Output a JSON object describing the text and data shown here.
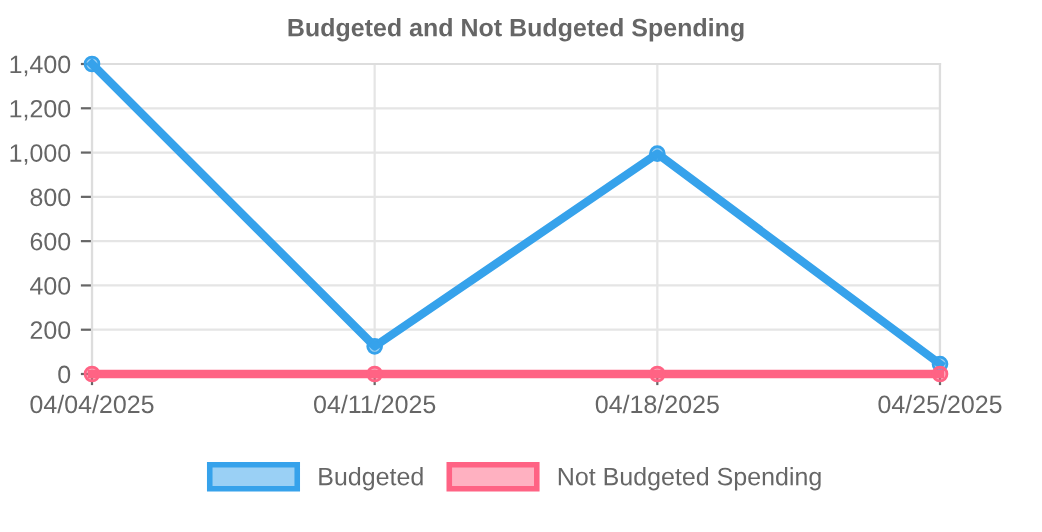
{
  "chart_data": {
    "type": "line",
    "title": "Budgeted and Not Budgeted Spending",
    "categories": [
      "04/04/2025",
      "04/11/2025",
      "04/18/2025",
      "04/25/2025"
    ],
    "series": [
      {
        "name": "Budgeted",
        "color": "#36a2eb",
        "values": [
          1400,
          125,
          995,
          45
        ]
      },
      {
        "name": "Not Budgeted Spending",
        "color": "#ff6384",
        "values": [
          0,
          0,
          0,
          0
        ]
      }
    ],
    "ylim": [
      0,
      1400
    ],
    "yticks": [
      0,
      {
        "value": 200,
        "label": "200"
      },
      {
        "value": 400,
        "label": "400"
      },
      {
        "value": 600,
        "label": "600"
      },
      {
        "value": 800,
        "label": "800"
      },
      {
        "value": 1000,
        "label": "1,000"
      },
      {
        "value": 1200,
        "label": "1,200"
      },
      {
        "value": 1400,
        "label": "1,400"
      }
    ],
    "grid": true,
    "legend": "bottom",
    "marker": "circle",
    "line_style": "solid"
  }
}
